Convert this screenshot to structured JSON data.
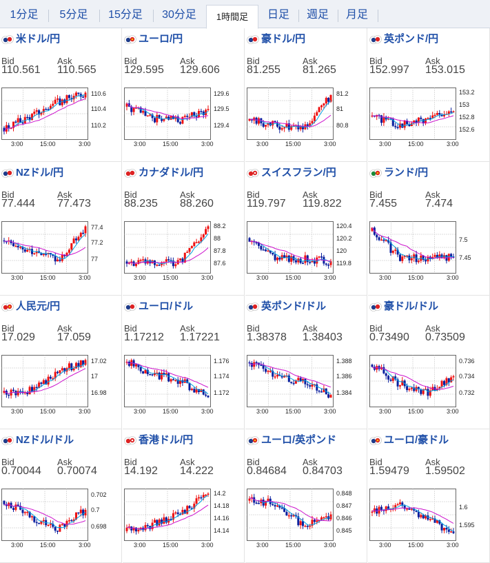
{
  "tabs": [
    {
      "label": "1分足",
      "active": false
    },
    {
      "label": "5分足",
      "active": false
    },
    {
      "label": "15分足",
      "active": false
    },
    {
      "label": "30分足",
      "active": false
    },
    {
      "label": "1時間足",
      "active": true
    },
    {
      "label": "日足",
      "active": false
    },
    {
      "label": "週足",
      "active": false
    },
    {
      "label": "月足",
      "active": false
    }
  ],
  "labels": {
    "bid": "Bid",
    "ask": "Ask"
  },
  "colors": {
    "up": "#ee1111",
    "down": "#0a1f9e",
    "ma_fast": "#00a0e0",
    "ma_slow": "#cc11cc",
    "link": "#1f4fa8"
  },
  "pairs": [
    {
      "name": "米ドル/円",
      "flag": "us",
      "bid": "110.561",
      "ask": "110.565",
      "yticks": [
        "110.6",
        "110.4",
        "110.2"
      ],
      "xticks": [
        "3:00",
        "15:00",
        "3:00"
      ],
      "trend": [
        0.2,
        0.45,
        0.75,
        0.95
      ]
    },
    {
      "name": "ユーロ/円",
      "flag": "eu",
      "bid": "129.595",
      "ask": "129.606",
      "yticks": [
        "129.6",
        "129.5",
        "129.4"
      ],
      "xticks": [
        "3:00",
        "15:00",
        "3:00"
      ],
      "trend": [
        0.65,
        0.4,
        0.35,
        0.6
      ]
    },
    {
      "name": "豪ドル/円",
      "flag": "au",
      "bid": "81.255",
      "ask": "81.265",
      "yticks": [
        "81.2",
        "81",
        "80.8"
      ],
      "xticks": [
        "3:00",
        "15:00",
        "3:00"
      ],
      "trend": [
        0.35,
        0.25,
        0.2,
        0.9
      ]
    },
    {
      "name": "英ポンド/円",
      "flag": "gb",
      "bid": "152.997",
      "ask": "153.015",
      "yticks": [
        "153.2",
        "153",
        "152.8",
        "152.6"
      ],
      "xticks": [
        "3:00",
        "15:00",
        "3:00"
      ],
      "trend": [
        0.45,
        0.25,
        0.4,
        0.55
      ]
    },
    {
      "name": "NZドル/円",
      "flag": "nz",
      "bid": "77.444",
      "ask": "77.473",
      "yticks": [
        "77.4",
        "77.2",
        "77"
      ],
      "xticks": [
        "3:00",
        "15:00",
        "3:00"
      ],
      "trend": [
        0.65,
        0.45,
        0.2,
        0.95
      ]
    },
    {
      "name": "カナダドル/円",
      "flag": "ca",
      "bid": "88.235",
      "ask": "88.260",
      "yticks": [
        "88.2",
        "88",
        "87.8",
        "87.6"
      ],
      "xticks": [
        "3:00",
        "15:00",
        "3:00"
      ],
      "trend": [
        0.2,
        0.15,
        0.2,
        0.95
      ]
    },
    {
      "name": "スイスフラン/円",
      "flag": "ch",
      "bid": "119.797",
      "ask": "119.822",
      "yticks": [
        "120.4",
        "120.2",
        "120",
        "119.8"
      ],
      "xticks": [
        "3:00",
        "15:00",
        "3:00"
      ],
      "trend": [
        0.7,
        0.25,
        0.25,
        0.2
      ]
    },
    {
      "name": "ランド/円",
      "flag": "za",
      "bid": "7.455",
      "ask": "7.474",
      "yticks": [
        "7.5",
        "7.45"
      ],
      "xticks": [
        "3:00",
        "15:00",
        "3:00"
      ],
      "trend": [
        0.85,
        0.3,
        0.25,
        0.3
      ]
    },
    {
      "name": "人民元/円",
      "flag": "cn",
      "bid": "17.029",
      "ask": "17.059",
      "yticks": [
        "17.02",
        "17",
        "16.98"
      ],
      "xticks": [
        "3:00",
        "15:00",
        "3:00"
      ],
      "trend": [
        0.25,
        0.3,
        0.7,
        0.95
      ]
    },
    {
      "name": "ユーロ/ドル",
      "flag": "us",
      "bid": "1.17212",
      "ask": "1.17221",
      "yticks": [
        "1.176",
        "1.174",
        "1.172"
      ],
      "xticks": [
        "3:00",
        "15:00",
        "3:00"
      ],
      "trend": [
        0.9,
        0.65,
        0.5,
        0.15
      ]
    },
    {
      "name": "英ポンド/ドル",
      "flag": "us",
      "bid": "1.38378",
      "ask": "1.38403",
      "yticks": [
        "1.388",
        "1.386",
        "1.384"
      ],
      "xticks": [
        "3:00",
        "15:00",
        "3:00"
      ],
      "trend": [
        0.9,
        0.55,
        0.5,
        0.2
      ]
    },
    {
      "name": "豪ドル/ドル",
      "flag": "us",
      "bid": "0.73490",
      "ask": "0.73509",
      "yticks": [
        "0.736",
        "0.734",
        "0.732"
      ],
      "xticks": [
        "3:00",
        "15:00",
        "3:00"
      ],
      "trend": [
        0.85,
        0.45,
        0.25,
        0.6
      ]
    },
    {
      "name": "NZドル/ドル",
      "flag": "us",
      "bid": "0.70044",
      "ask": "0.70074",
      "yticks": [
        "0.702",
        "0.7",
        "0.698"
      ],
      "xticks": [
        "3:00",
        "15:00",
        "3:00"
      ],
      "trend": [
        0.8,
        0.45,
        0.2,
        0.6
      ]
    },
    {
      "name": "香港ドル/円",
      "flag": "hk",
      "bid": "14.192",
      "ask": "14.222",
      "yticks": [
        "14.2",
        "14.18",
        "14.16",
        "14.14"
      ],
      "xticks": [
        "3:00",
        "15:00",
        "3:00"
      ],
      "trend": [
        0.15,
        0.3,
        0.55,
        0.95
      ]
    },
    {
      "name": "ユーロ/英ポンド",
      "flag": "eu",
      "bid": "0.84684",
      "ask": "0.84703",
      "yticks": [
        "0.848",
        "0.847",
        "0.846",
        "0.845"
      ],
      "xticks": [
        "3:00",
        "15:00",
        "3:00"
      ],
      "trend": [
        0.8,
        0.75,
        0.25,
        0.5
      ]
    },
    {
      "name": "ユーロ/豪ドル",
      "flag": "eu",
      "bid": "1.59479",
      "ask": "1.59502",
      "yticks": [
        "1.6",
        "1.595"
      ],
      "xticks": [
        "3:00",
        "15:00",
        "3:00"
      ],
      "trend": [
        0.55,
        0.75,
        0.45,
        0.1
      ]
    }
  ]
}
